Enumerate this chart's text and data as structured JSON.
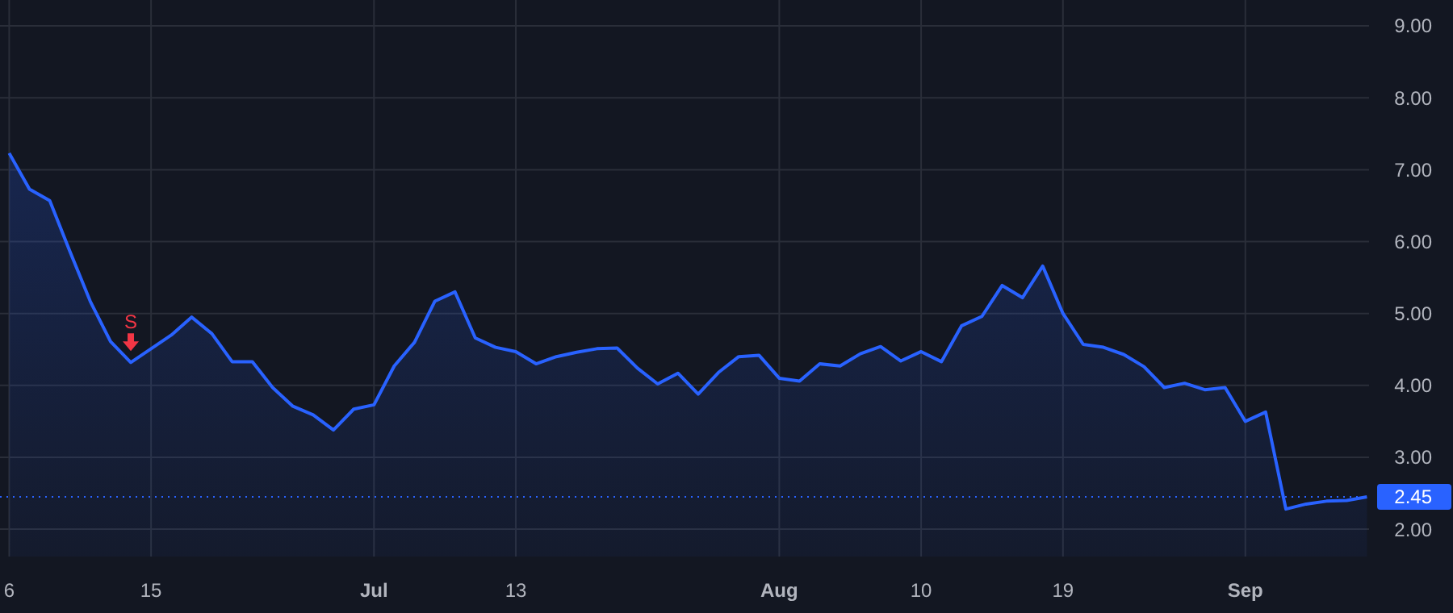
{
  "chart_data": {
    "type": "area",
    "categories": [
      "6",
      null,
      null,
      null,
      null,
      null,
      null,
      "15",
      null,
      null,
      null,
      null,
      null,
      null,
      null,
      null,
      null,
      null,
      "Jul",
      null,
      null,
      null,
      null,
      null,
      null,
      "13",
      null,
      null,
      null,
      null,
      null,
      null,
      null,
      null,
      null,
      null,
      null,
      null,
      "Aug",
      null,
      null,
      null,
      null,
      null,
      null,
      "10",
      null,
      null,
      null,
      null,
      null,
      null,
      "19",
      null,
      null,
      null,
      null,
      null,
      null,
      null,
      null,
      "Sep",
      null,
      null,
      null,
      null,
      null,
      null
    ],
    "series": [
      {
        "color": "#2962ff",
        "values": [
          7.23,
          6.73,
          6.57,
          5.86,
          5.17,
          4.61,
          4.32,
          4.51,
          4.7,
          4.95,
          4.72,
          4.33,
          4.33,
          3.97,
          3.71,
          3.59,
          3.38,
          3.67,
          3.73,
          4.27,
          4.6,
          5.17,
          5.3,
          4.66,
          4.53,
          4.47,
          4.3,
          4.4,
          4.46,
          4.51,
          4.52,
          4.24,
          4.02,
          4.17,
          3.88,
          4.18,
          4.4,
          4.42,
          4.1,
          4.06,
          4.3,
          4.27,
          4.44,
          4.54,
          4.34,
          4.47,
          4.33,
          4.83,
          4.96,
          5.39,
          5.22,
          5.66,
          5.0,
          4.57,
          4.53,
          4.43,
          4.26,
          3.97,
          4.03,
          3.94,
          3.97,
          3.5,
          3.63,
          2.28,
          2.35,
          2.39,
          2.4,
          2.45
        ]
      }
    ],
    "ylim": [
      1.62,
      9.36
    ],
    "yticks": [
      {
        "value": 2,
        "label": "2.00"
      },
      {
        "value": 3,
        "label": "3.00"
      },
      {
        "value": 4,
        "label": "4.00"
      },
      {
        "value": 5,
        "label": "5.00"
      },
      {
        "value": 6,
        "label": "6.00"
      },
      {
        "value": 7,
        "label": "7.00"
      },
      {
        "value": 8,
        "label": "8.00"
      },
      {
        "value": 9,
        "label": "9.00"
      }
    ],
    "grid": true,
    "ref_lines": [
      {
        "axis": "y",
        "value": 2.45,
        "label": "2.45",
        "color": "#2962ff",
        "line_style": "dotted"
      }
    ],
    "annotations": [
      {
        "text": "S",
        "y": 4.32
      }
    ]
  }
}
